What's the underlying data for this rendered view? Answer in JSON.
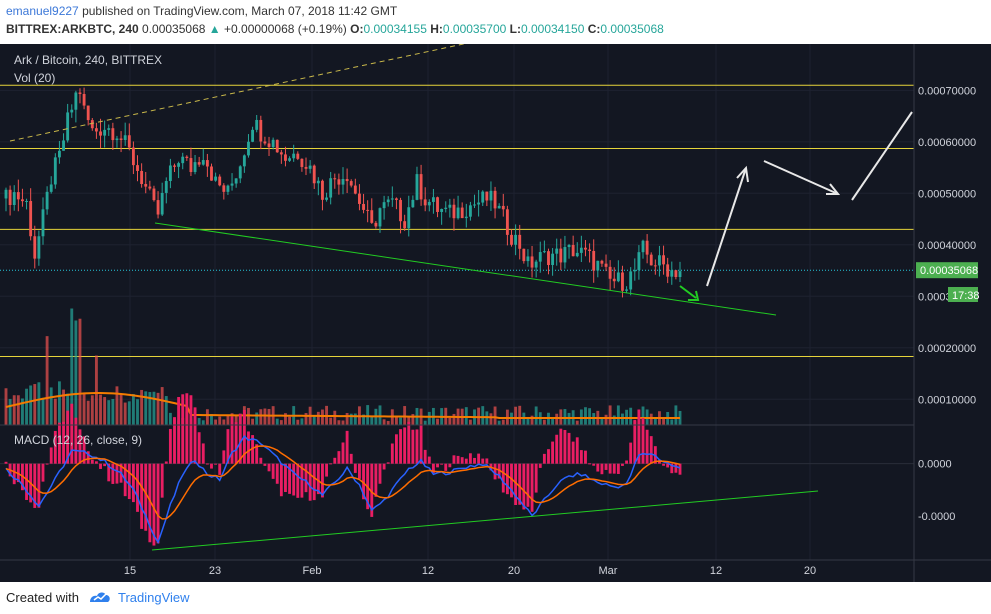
{
  "header": {
    "author": "emanuel9227",
    "published_text": "published on TradingView.com, March 07, 2018 11:42 GMT",
    "symbol": "BITTREX:ARKBTC, 240",
    "last": "0.00035068",
    "change": "+0.00000068 (+0.19%)",
    "o_label": "O:",
    "o_value": "0.00034155",
    "h_label": "H:",
    "h_value": "0.00035700",
    "l_label": "L:",
    "l_value": "0.00034150",
    "c_label": "C:",
    "c_value": "0.00035068"
  },
  "legend": {
    "title": "Ark / Bitcoin, 240, BITTREX",
    "vol": "Vol (20)",
    "macd": "MACD (12, 26, close, 9)"
  },
  "price_badge": {
    "value": "0.00035068",
    "timer": "17:38"
  },
  "footer": {
    "created": "Created with",
    "brand": "TradingView"
  },
  "colors": {
    "up": "#26a69a",
    "down": "#ef5350",
    "ma": "#f57c00",
    "macd_line": "#2962ff",
    "signal_line": "#ff6d00",
    "hist": "#e91e63",
    "trend": "#22cc22",
    "level": "#e6d43a",
    "arrow": "#ffffff",
    "badge": "#4caf50",
    "bg": "#131722"
  },
  "chart_data": {
    "type": "candlestick",
    "title": "Ark / Bitcoin, 240, BITTREX",
    "x_ticks": [
      "15",
      "23",
      "Feb",
      "12",
      "20",
      "Mar",
      "12",
      "20"
    ],
    "price_axis": {
      "ticks": [
        "0.00070000",
        "0.00060000",
        "0.00050000",
        "0.00040000",
        "0.00030000",
        "0.00020000",
        "0.00010000"
      ],
      "values": [
        0.0007,
        0.0006,
        0.0005,
        0.0004,
        0.0003,
        0.0002,
        0.0001
      ],
      "range": [
        5e-05,
        0.00079
      ]
    },
    "macd_axis": {
      "ticks": [
        "0.0000",
        "-0.0000"
      ],
      "values": [
        0,
        -5e-05
      ],
      "range": [
        -9e-05,
        3.5e-05
      ]
    },
    "horizontal_levels": [
      0.00071,
      0.000587,
      0.00043,
      0.000183
    ],
    "price_path": [
      [
        0,
        0.00049
      ],
      [
        2,
        0.0005
      ],
      [
        5,
        0.00048
      ],
      [
        7,
        0.00038
      ],
      [
        9,
        0.00045
      ],
      [
        11,
        0.00053
      ],
      [
        13,
        0.00057
      ],
      [
        15,
        0.00064
      ],
      [
        17,
        0.00069
      ],
      [
        18,
        0.0007
      ],
      [
        19,
        0.00066
      ],
      [
        21,
        0.00062
      ],
      [
        24,
        0.00063
      ],
      [
        27,
        0.00062
      ],
      [
        30,
        0.00058
      ],
      [
        33,
        0.00053
      ],
      [
        36,
        0.00047
      ],
      [
        37,
        0.00046
      ],
      [
        39,
        0.00052
      ],
      [
        42,
        0.00057
      ],
      [
        45,
        0.00055
      ],
      [
        48,
        0.00058
      ],
      [
        51,
        0.00052
      ],
      [
        54,
        0.0005
      ],
      [
        57,
        0.00056
      ],
      [
        60,
        0.00064
      ],
      [
        62,
        0.00062
      ],
      [
        65,
        0.0006
      ],
      [
        68,
        0.00057
      ],
      [
        71,
        0.00058
      ],
      [
        74,
        0.00055
      ],
      [
        77,
        0.0005
      ],
      [
        80,
        0.00053
      ],
      [
        83,
        0.00054
      ],
      [
        85,
        0.0005
      ],
      [
        87,
        0.00047
      ],
      [
        89,
        0.00043
      ],
      [
        91,
        0.00047
      ],
      [
        94,
        0.00048
      ],
      [
        97,
        0.00045
      ],
      [
        100,
        0.00052
      ],
      [
        102,
        0.00049
      ],
      [
        105,
        0.00047
      ],
      [
        108,
        0.00046
      ],
      [
        111,
        0.00047
      ],
      [
        114,
        0.00048
      ],
      [
        117,
        0.00049
      ],
      [
        119,
        0.00048
      ],
      [
        121,
        0.00045
      ],
      [
        123,
        0.00042
      ],
      [
        125,
        0.0004
      ],
      [
        127,
        0.00036
      ],
      [
        129,
        0.00037
      ],
      [
        132,
        0.00038
      ],
      [
        135,
        0.00038
      ],
      [
        138,
        0.00039
      ],
      [
        141,
        0.00038
      ],
      [
        144,
        0.00036
      ],
      [
        147,
        0.00033
      ],
      [
        149,
        0.00033
      ],
      [
        151,
        0.00033
      ],
      [
        153,
        0.00035
      ],
      [
        155,
        0.00039
      ],
      [
        157,
        0.00037
      ],
      [
        160,
        0.00036
      ],
      [
        162,
        0.00035
      ],
      [
        164,
        0.0003507
      ]
    ],
    "candle_count": 165,
    "volume_ma": 0.00015,
    "macd_path": [
      [
        0,
        -5e-06
      ],
      [
        4,
        -2e-05
      ],
      [
        8,
        -4e-05
      ],
      [
        12,
        -1.5e-05
      ],
      [
        16,
        1.2e-05
      ],
      [
        20,
        1e-05
      ],
      [
        24,
        2e-06
      ],
      [
        28,
        -1e-05
      ],
      [
        31,
        -2.5e-05
      ],
      [
        34,
        -5e-05
      ],
      [
        37,
        -7.5e-05
      ],
      [
        40,
        -4e-05
      ],
      [
        43,
        -1e-05
      ],
      [
        46,
        4e-06
      ],
      [
        49,
        -1e-05
      ],
      [
        52,
        -1.5e-05
      ],
      [
        55,
        1e-05
      ],
      [
        58,
        2.5e-05
      ],
      [
        62,
        2e-05
      ],
      [
        66,
        5e-06
      ],
      [
        70,
        -1e-05
      ],
      [
        74,
        -2e-05
      ],
      [
        77,
        -3e-05
      ],
      [
        80,
        -1.8e-05
      ],
      [
        83,
        -5e-06
      ],
      [
        86,
        -2e-05
      ],
      [
        89,
        -4.5e-05
      ],
      [
        92,
        -3.5e-05
      ],
      [
        95,
        -2e-05
      ],
      [
        98,
        -5e-06
      ],
      [
        101,
        2e-06
      ],
      [
        104,
        -1e-05
      ],
      [
        108,
        -8e-06
      ],
      [
        112,
        -3e-06
      ],
      [
        116,
        0.0
      ],
      [
        120,
        -1.2e-05
      ],
      [
        124,
        -3e-05
      ],
      [
        128,
        -5e-05
      ],
      [
        131,
        -3.5e-05
      ],
      [
        134,
        -2e-05
      ],
      [
        137,
        -1.2e-05
      ],
      [
        140,
        -1e-05
      ],
      [
        144,
        -1.8e-05
      ],
      [
        148,
        -2.2e-05
      ],
      [
        151,
        -2e-05
      ],
      [
        154,
        8e-06
      ],
      [
        157,
        1e-05
      ],
      [
        160,
        2e-06
      ],
      [
        164,
        -5e-06
      ]
    ]
  }
}
